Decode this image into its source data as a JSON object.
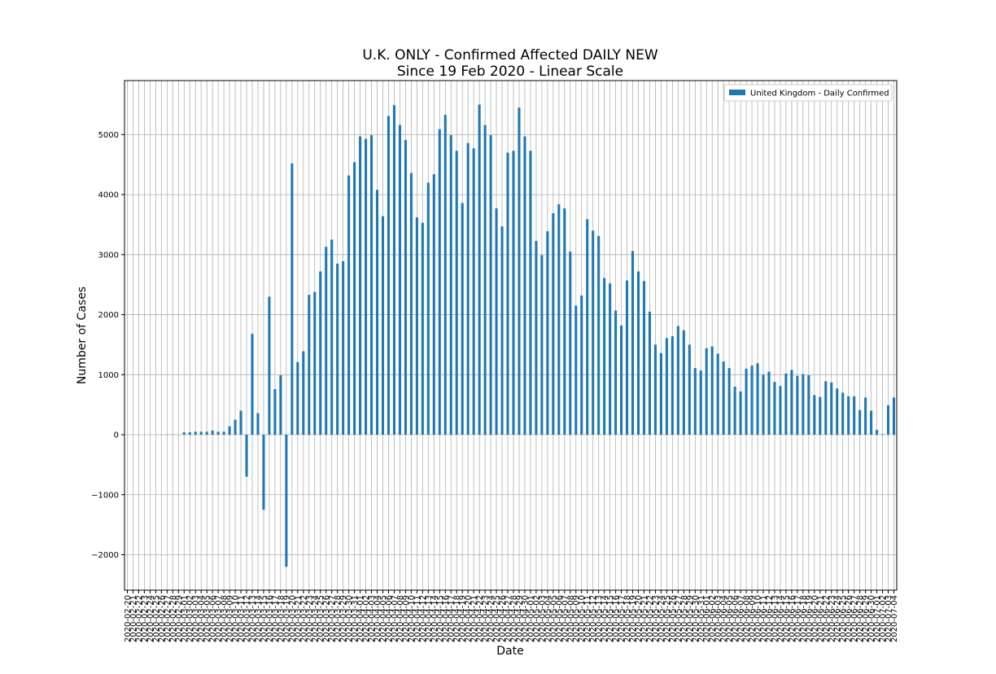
{
  "chart_data": {
    "type": "bar",
    "title": "U.K. ONLY - Confirmed Affected DAILY NEW",
    "subtitle": "Since 19 Feb 2020 - Linear Scale",
    "x_label": "Date",
    "y_label": "Number of Cases",
    "legend_position": "upper right",
    "grid": true,
    "categories": [
      "2020-02-20",
      "2020-02-21",
      "2020-02-22",
      "2020-02-23",
      "2020-02-24",
      "2020-02-25",
      "2020-02-26",
      "2020-02-27",
      "2020-02-28",
      "2020-02-29",
      "2020-03-01",
      "2020-03-02",
      "2020-03-03",
      "2020-03-04",
      "2020-03-05",
      "2020-03-06",
      "2020-03-07",
      "2020-03-08",
      "2020-03-09",
      "2020-03-10",
      "2020-03-11",
      "2020-03-12",
      "2020-03-13",
      "2020-03-14",
      "2020-03-15",
      "2020-03-16",
      "2020-03-17",
      "2020-03-18",
      "2020-03-19",
      "2020-03-20",
      "2020-03-21",
      "2020-03-22",
      "2020-03-23",
      "2020-03-24",
      "2020-03-25",
      "2020-03-26",
      "2020-03-27",
      "2020-03-28",
      "2020-03-29",
      "2020-03-30",
      "2020-03-31",
      "2020-04-01",
      "2020-04-02",
      "2020-04-03",
      "2020-04-04",
      "2020-04-05",
      "2020-04-06",
      "2020-04-07",
      "2020-04-08",
      "2020-04-09",
      "2020-04-10",
      "2020-04-11",
      "2020-04-12",
      "2020-04-13",
      "2020-04-14",
      "2020-04-15",
      "2020-04-16",
      "2020-04-17",
      "2020-04-18",
      "2020-04-19",
      "2020-04-20",
      "2020-04-21",
      "2020-04-22",
      "2020-04-23",
      "2020-04-24",
      "2020-04-25",
      "2020-04-26",
      "2020-04-27",
      "2020-04-28",
      "2020-04-29",
      "2020-04-30",
      "2020-05-01",
      "2020-05-02",
      "2020-05-03",
      "2020-05-04",
      "2020-05-05",
      "2020-05-06",
      "2020-05-07",
      "2020-05-08",
      "2020-05-09",
      "2020-05-10",
      "2020-05-11",
      "2020-05-12",
      "2020-05-13",
      "2020-05-14",
      "2020-05-15",
      "2020-05-16",
      "2020-05-17",
      "2020-05-18",
      "2020-05-19",
      "2020-05-20",
      "2020-05-21",
      "2020-05-22",
      "2020-05-23",
      "2020-05-24",
      "2020-05-25",
      "2020-05-26",
      "2020-05-27",
      "2020-05-28",
      "2020-05-29",
      "2020-05-30",
      "2020-05-31",
      "2020-06-01",
      "2020-06-02",
      "2020-06-03",
      "2020-06-04",
      "2020-06-05",
      "2020-06-06",
      "2020-06-07",
      "2020-06-08",
      "2020-06-09",
      "2020-06-10",
      "2020-06-11",
      "2020-06-12",
      "2020-06-13",
      "2020-06-14",
      "2020-06-15",
      "2020-06-16",
      "2020-06-17",
      "2020-06-18",
      "2020-06-19",
      "2020-06-20",
      "2020-06-21",
      "2020-06-22",
      "2020-06-23",
      "2020-06-24",
      "2020-06-25",
      "2020-06-26",
      "2020-06-27",
      "2020-06-28",
      "2020-06-29",
      "2020-06-30",
      "2020-07-01",
      "2020-07-02",
      "2020-07-03",
      "2020-07-04"
    ],
    "series": [
      {
        "name": "United Kingdom - Daily Confirmed",
        "color": "#1f77b4",
        "values": [
          0,
          0,
          0,
          0,
          0,
          0,
          0,
          3,
          3,
          0,
          40,
          40,
          50,
          50,
          50,
          70,
          50,
          50,
          140,
          250,
          400,
          -700,
          1680,
          360,
          -1250,
          2300,
          760,
          990,
          -2200,
          4520,
          1210,
          1390,
          2330,
          2380,
          2720,
          3130,
          3250,
          2850,
          2890,
          4320,
          4540,
          4970,
          4930,
          4990,
          4080,
          3640,
          5310,
          5490,
          5160,
          4910,
          4360,
          3620,
          3530,
          4200,
          4340,
          5090,
          5330,
          4990,
          4730,
          3860,
          4860,
          4770,
          5500,
          5160,
          4990,
          3770,
          3470,
          4700,
          4730,
          5450,
          4970,
          4730,
          3230,
          2990,
          3390,
          3690,
          3840,
          3770,
          3050,
          2150,
          2320,
          3590,
          3400,
          3310,
          2610,
          2520,
          2070,
          1820,
          2570,
          3060,
          2720,
          2560,
          2050,
          1500,
          1360,
          1610,
          1640,
          1810,
          1740,
          1500,
          1110,
          1070,
          1440,
          1470,
          1350,
          1220,
          1110,
          800,
          720,
          1100,
          1150,
          1190,
          1000,
          1050,
          880,
          810,
          1020,
          1080,
          980,
          1010,
          990,
          660,
          630,
          890,
          870,
          770,
          700,
          640,
          640,
          410,
          620,
          400,
          80,
          10,
          490,
          620
        ]
      }
    ],
    "ylim": [
      -2590,
      5900
    ],
    "yticks": [
      {
        "value": -2000,
        "label": "−2000"
      },
      {
        "value": -1000,
        "label": "−1000"
      },
      0,
      1000,
      2000,
      3000,
      4000,
      5000
    ]
  }
}
